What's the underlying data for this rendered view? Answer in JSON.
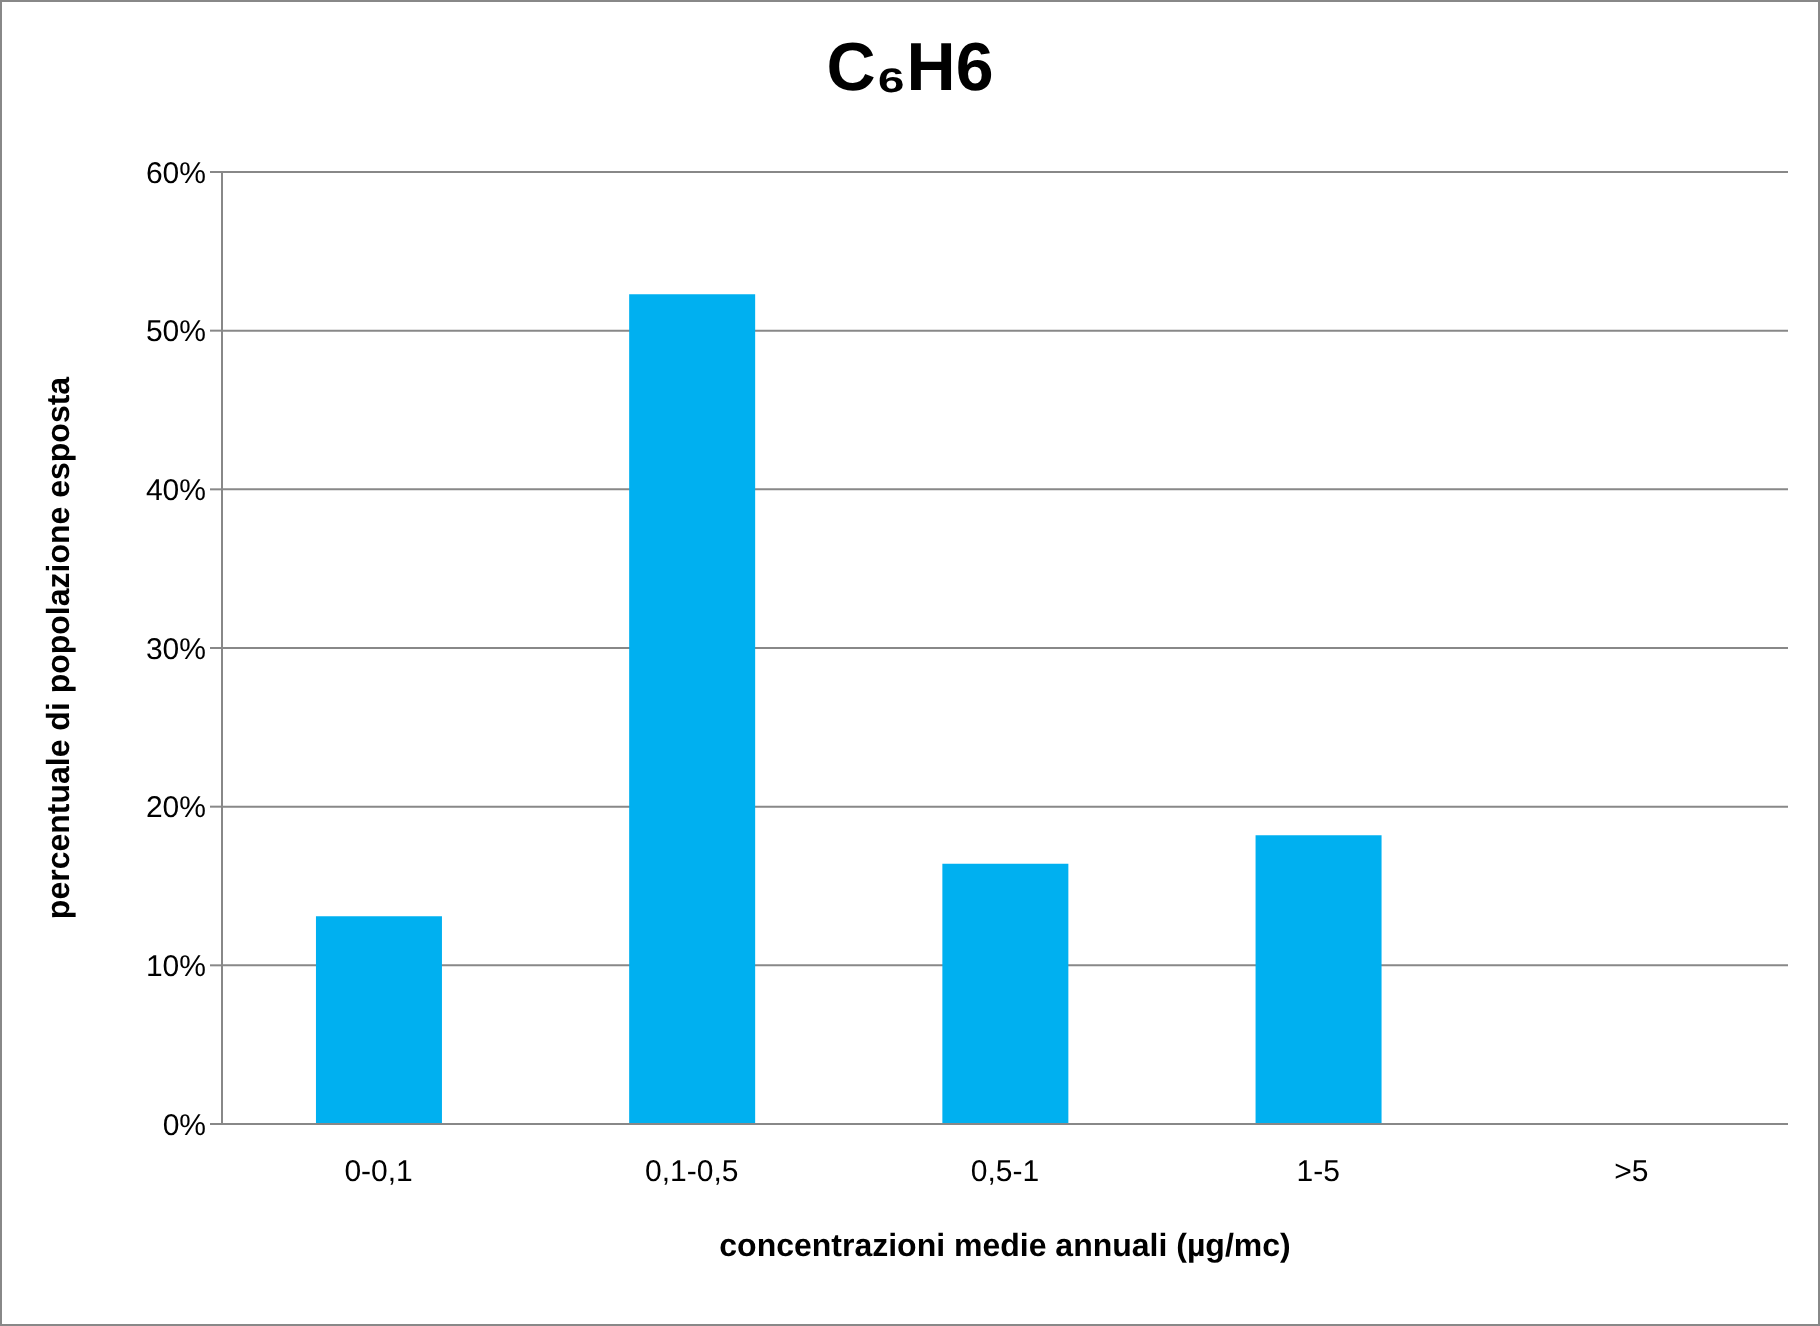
{
  "chart_data": {
    "type": "bar",
    "title": "C₆H6",
    "xlabel": "concentrazioni medie annuali (µg/mc)",
    "ylabel": "percentuale di popolazione  esposta",
    "categories": [
      "0-0,1",
      "0,1-0,5",
      "0,5-1",
      "1-5",
      ">5"
    ],
    "values": [
      13.1,
      52.3,
      16.4,
      18.2,
      0
    ],
    "color": "#00b0f0",
    "ylim": [
      0,
      60
    ],
    "yticks": [
      {
        "value": 0,
        "label": "0%"
      },
      {
        "value": 10,
        "label": "10%"
      },
      {
        "value": 20,
        "label": "20%"
      },
      {
        "value": 30,
        "label": "30%"
      },
      {
        "value": 40,
        "label": "40%"
      },
      {
        "value": 50,
        "label": "50%"
      },
      {
        "value": 60,
        "label": "60%"
      }
    ],
    "grid": "y"
  }
}
